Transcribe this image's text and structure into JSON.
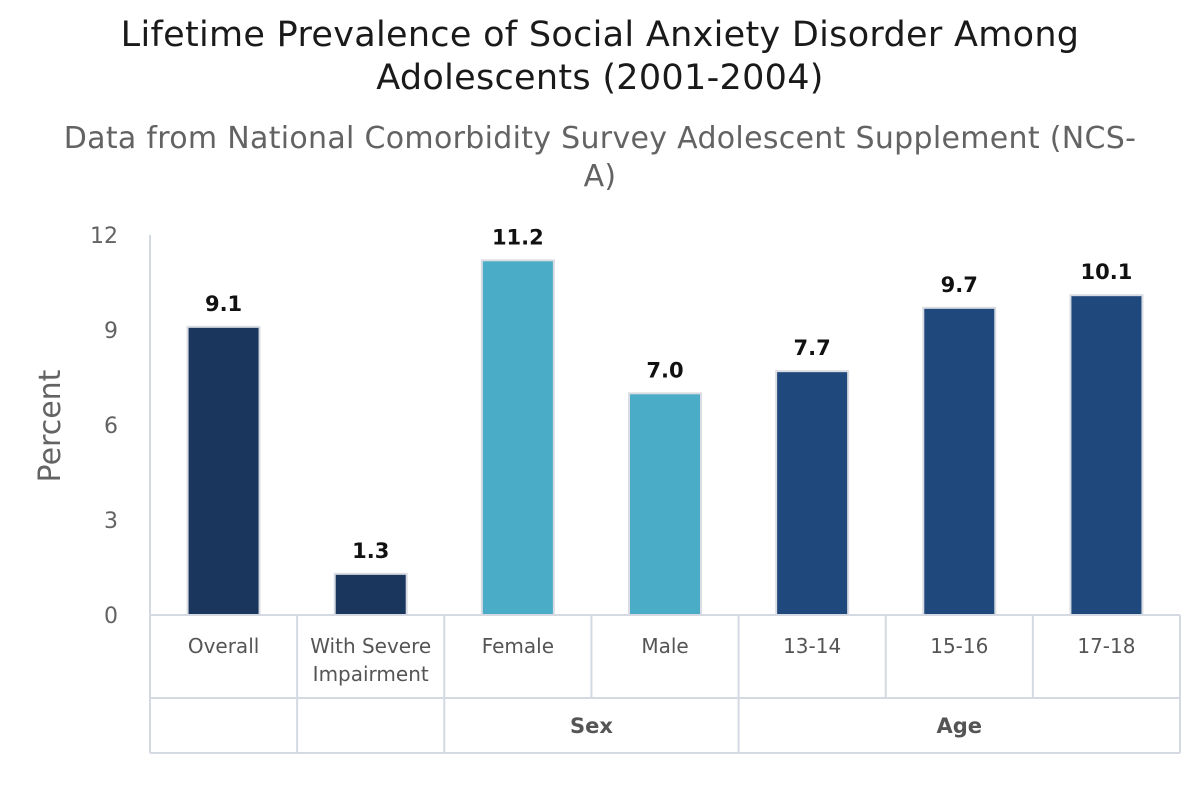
{
  "chart_data": {
    "type": "bar",
    "title": "Lifetime Prevalence of Social Anxiety Disorder Among Adolescents (2001-2004)",
    "subtitle": "Data from National Comorbidity Survey Adolescent Supplement (NCS-A)",
    "ylabel": "Percent",
    "xlabel": "",
    "ylim": [
      0,
      12
    ],
    "yticks": [
      "0",
      "3",
      "6",
      "9",
      "12"
    ],
    "grid": false,
    "legend": "none",
    "categories": [
      {
        "label": [
          "Overall"
        ],
        "value": 9.1,
        "value_label": "9.1",
        "color": "#1a365d"
      },
      {
        "label": [
          "With Severe",
          "Impairment"
        ],
        "value": 1.3,
        "value_label": "1.3",
        "color": "#1a365d"
      },
      {
        "label": [
          "Female"
        ],
        "value": 11.2,
        "value_label": "11.2",
        "color": "#4aacc6"
      },
      {
        "label": [
          "Male"
        ],
        "value": 7.0,
        "value_label": "7.0",
        "color": "#4aacc6"
      },
      {
        "label": [
          "13-14"
        ],
        "value": 7.7,
        "value_label": "7.7",
        "color": "#1f487c"
      },
      {
        "label": [
          "15-16"
        ],
        "value": 9.7,
        "value_label": "9.7",
        "color": "#1f487c"
      },
      {
        "label": [
          "17-18"
        ],
        "value": 10.1,
        "value_label": "10.1",
        "color": "#1f487c"
      }
    ],
    "groups": [
      {
        "label": "",
        "span": 1
      },
      {
        "label": "",
        "span": 1
      },
      {
        "label": "Sex",
        "span": 2
      },
      {
        "label": "Age",
        "span": 3
      }
    ]
  }
}
